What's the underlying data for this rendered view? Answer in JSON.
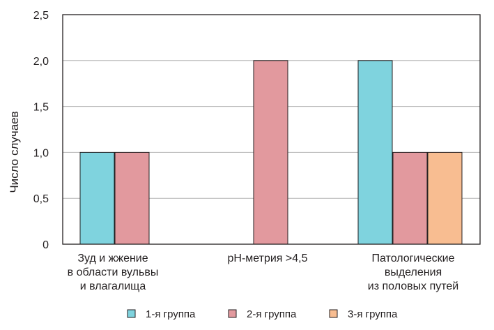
{
  "chart_data": {
    "type": "bar",
    "title": "",
    "xlabel": "",
    "ylabel": "Число случаев",
    "ylim": [
      0,
      2.5
    ],
    "yticks": [
      0,
      0.5,
      1.0,
      1.5,
      2.0,
      2.5
    ],
    "ytick_labels": [
      "0",
      "0,5",
      "1,0",
      "1,5",
      "2,0",
      "2,5"
    ],
    "grid": true,
    "legend_position": "bottom",
    "categories": [
      [
        "Зуд и жжение",
        "в области вульвы",
        "и влагалища"
      ],
      [
        "pH-метрия >4,5"
      ],
      [
        "Патологические",
        "выделения",
        "из половых путей"
      ]
    ],
    "series": [
      {
        "name": "1-я группа",
        "color": "#7fd3de",
        "values": [
          1,
          0,
          2
        ]
      },
      {
        "name": "2-я группа",
        "color": "#e2999e",
        "values": [
          1,
          2,
          1
        ]
      },
      {
        "name": "3-я группа",
        "color": "#f8bd91",
        "values": [
          0,
          0,
          1
        ]
      }
    ]
  }
}
